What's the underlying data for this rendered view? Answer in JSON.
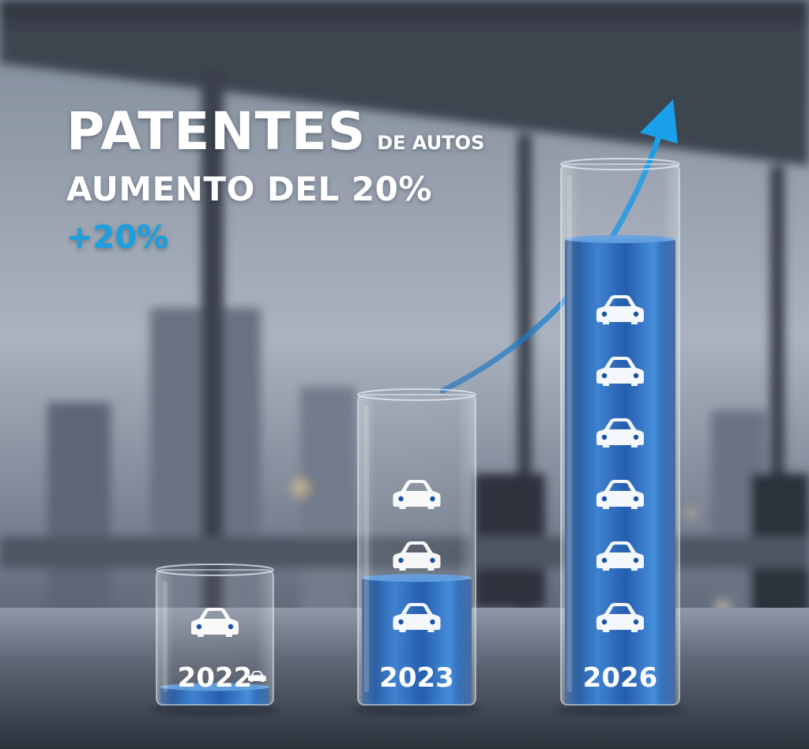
{
  "headline": {
    "title_main": "PATENTES",
    "title_sub": "DE AUTOS",
    "subtitle": "AUMENTO DEL 20%",
    "growth": "+20%"
  },
  "colors": {
    "accent": "#1a9fe0",
    "liquid_dark": "#0b3e86",
    "liquid_light": "#3a86d8",
    "text": "#ffffff"
  },
  "chart_data": {
    "type": "bar",
    "categories": [
      "2022",
      "2023",
      "2026"
    ],
    "values": [
      1,
      3,
      6
    ],
    "unit_icon": "car-icon",
    "trend_arrow": "up-right",
    "title": "PATENTES DE AUTOS",
    "subtitle": "AUMENTO DEL 20%",
    "annotation": "+20%"
  }
}
